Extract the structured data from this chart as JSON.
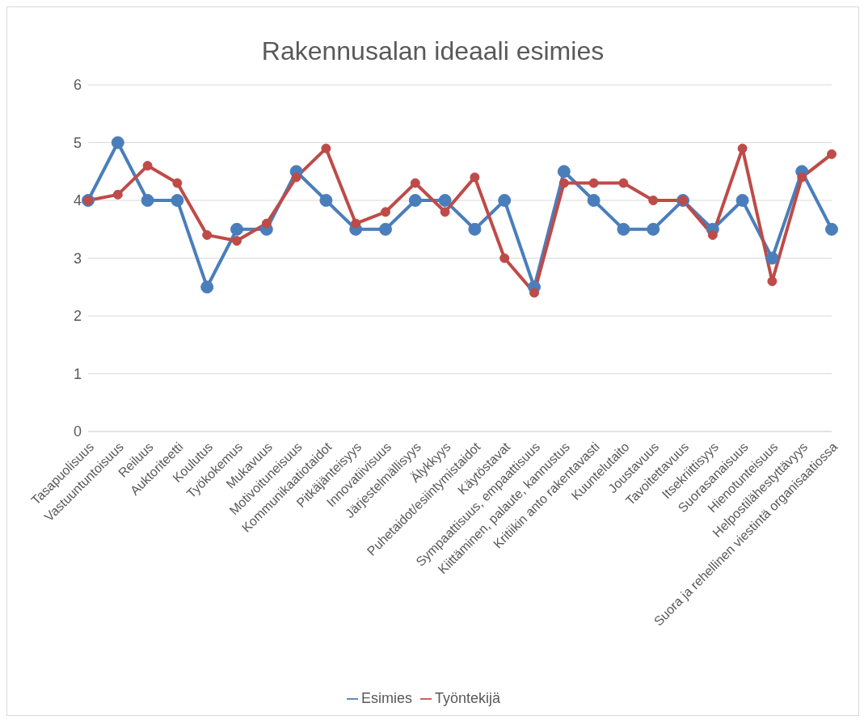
{
  "chart_data": {
    "type": "line",
    "title": "Rakennusalan ideaali esimies",
    "categories": [
      "Tasapuolisuus",
      "Vastuuntuntoisuus",
      "Reiluus",
      "Auktoriteetti",
      "Koulutus",
      "Työkokemus",
      "Mukavuus",
      "Motivoituneisuus",
      "Kommunikaatiotaidot",
      "Pitkäjänteisyys",
      "Innovatiivisuus",
      "Järjestelmällisyys",
      "Älykkyys",
      "Puhetaidot/esiintymistaidot",
      "Käytöstavat",
      "Sympaattisuus, empaattisuus",
      "Kiittäminen, palaute, kannustus",
      "Kritiikin anto rakentavasti",
      "Kuuntelutaito",
      "Joustavuus",
      "Tavoitettavuus",
      "Itsekriittisyys",
      "Suorasanaisuus",
      "Hienotunteisuus",
      "Helpostilähestyttävyys",
      "Suora ja rehellinen viestintä organisaatiossa"
    ],
    "series": [
      {
        "name": "Esimies",
        "color": "#4a7ebb",
        "values": [
          4,
          5,
          4,
          4,
          2.5,
          3.5,
          3.5,
          4.5,
          4,
          3.5,
          3.5,
          4,
          4,
          3.5,
          4,
          2.5,
          4.5,
          4,
          3.5,
          3.5,
          4,
          3.5,
          4,
          3,
          4.5,
          3.5
        ]
      },
      {
        "name": "Työntekijä",
        "color": "#be4b48",
        "values": [
          4,
          4.1,
          4.6,
          4.3,
          3.4,
          3.3,
          3.6,
          4.4,
          4.9,
          3.6,
          3.8,
          4.3,
          3.8,
          4.4,
          3,
          2.4,
          4.3,
          4.3,
          4.3,
          4,
          4,
          3.4,
          4.9,
          2.6,
          4.4,
          4.8
        ]
      }
    ],
    "ylim": [
      0,
      6
    ],
    "yticks": [
      0,
      1,
      2,
      3,
      4,
      5,
      6
    ],
    "grid": "y",
    "legend": "bottom",
    "marker": "circle",
    "line_style": "solid"
  }
}
